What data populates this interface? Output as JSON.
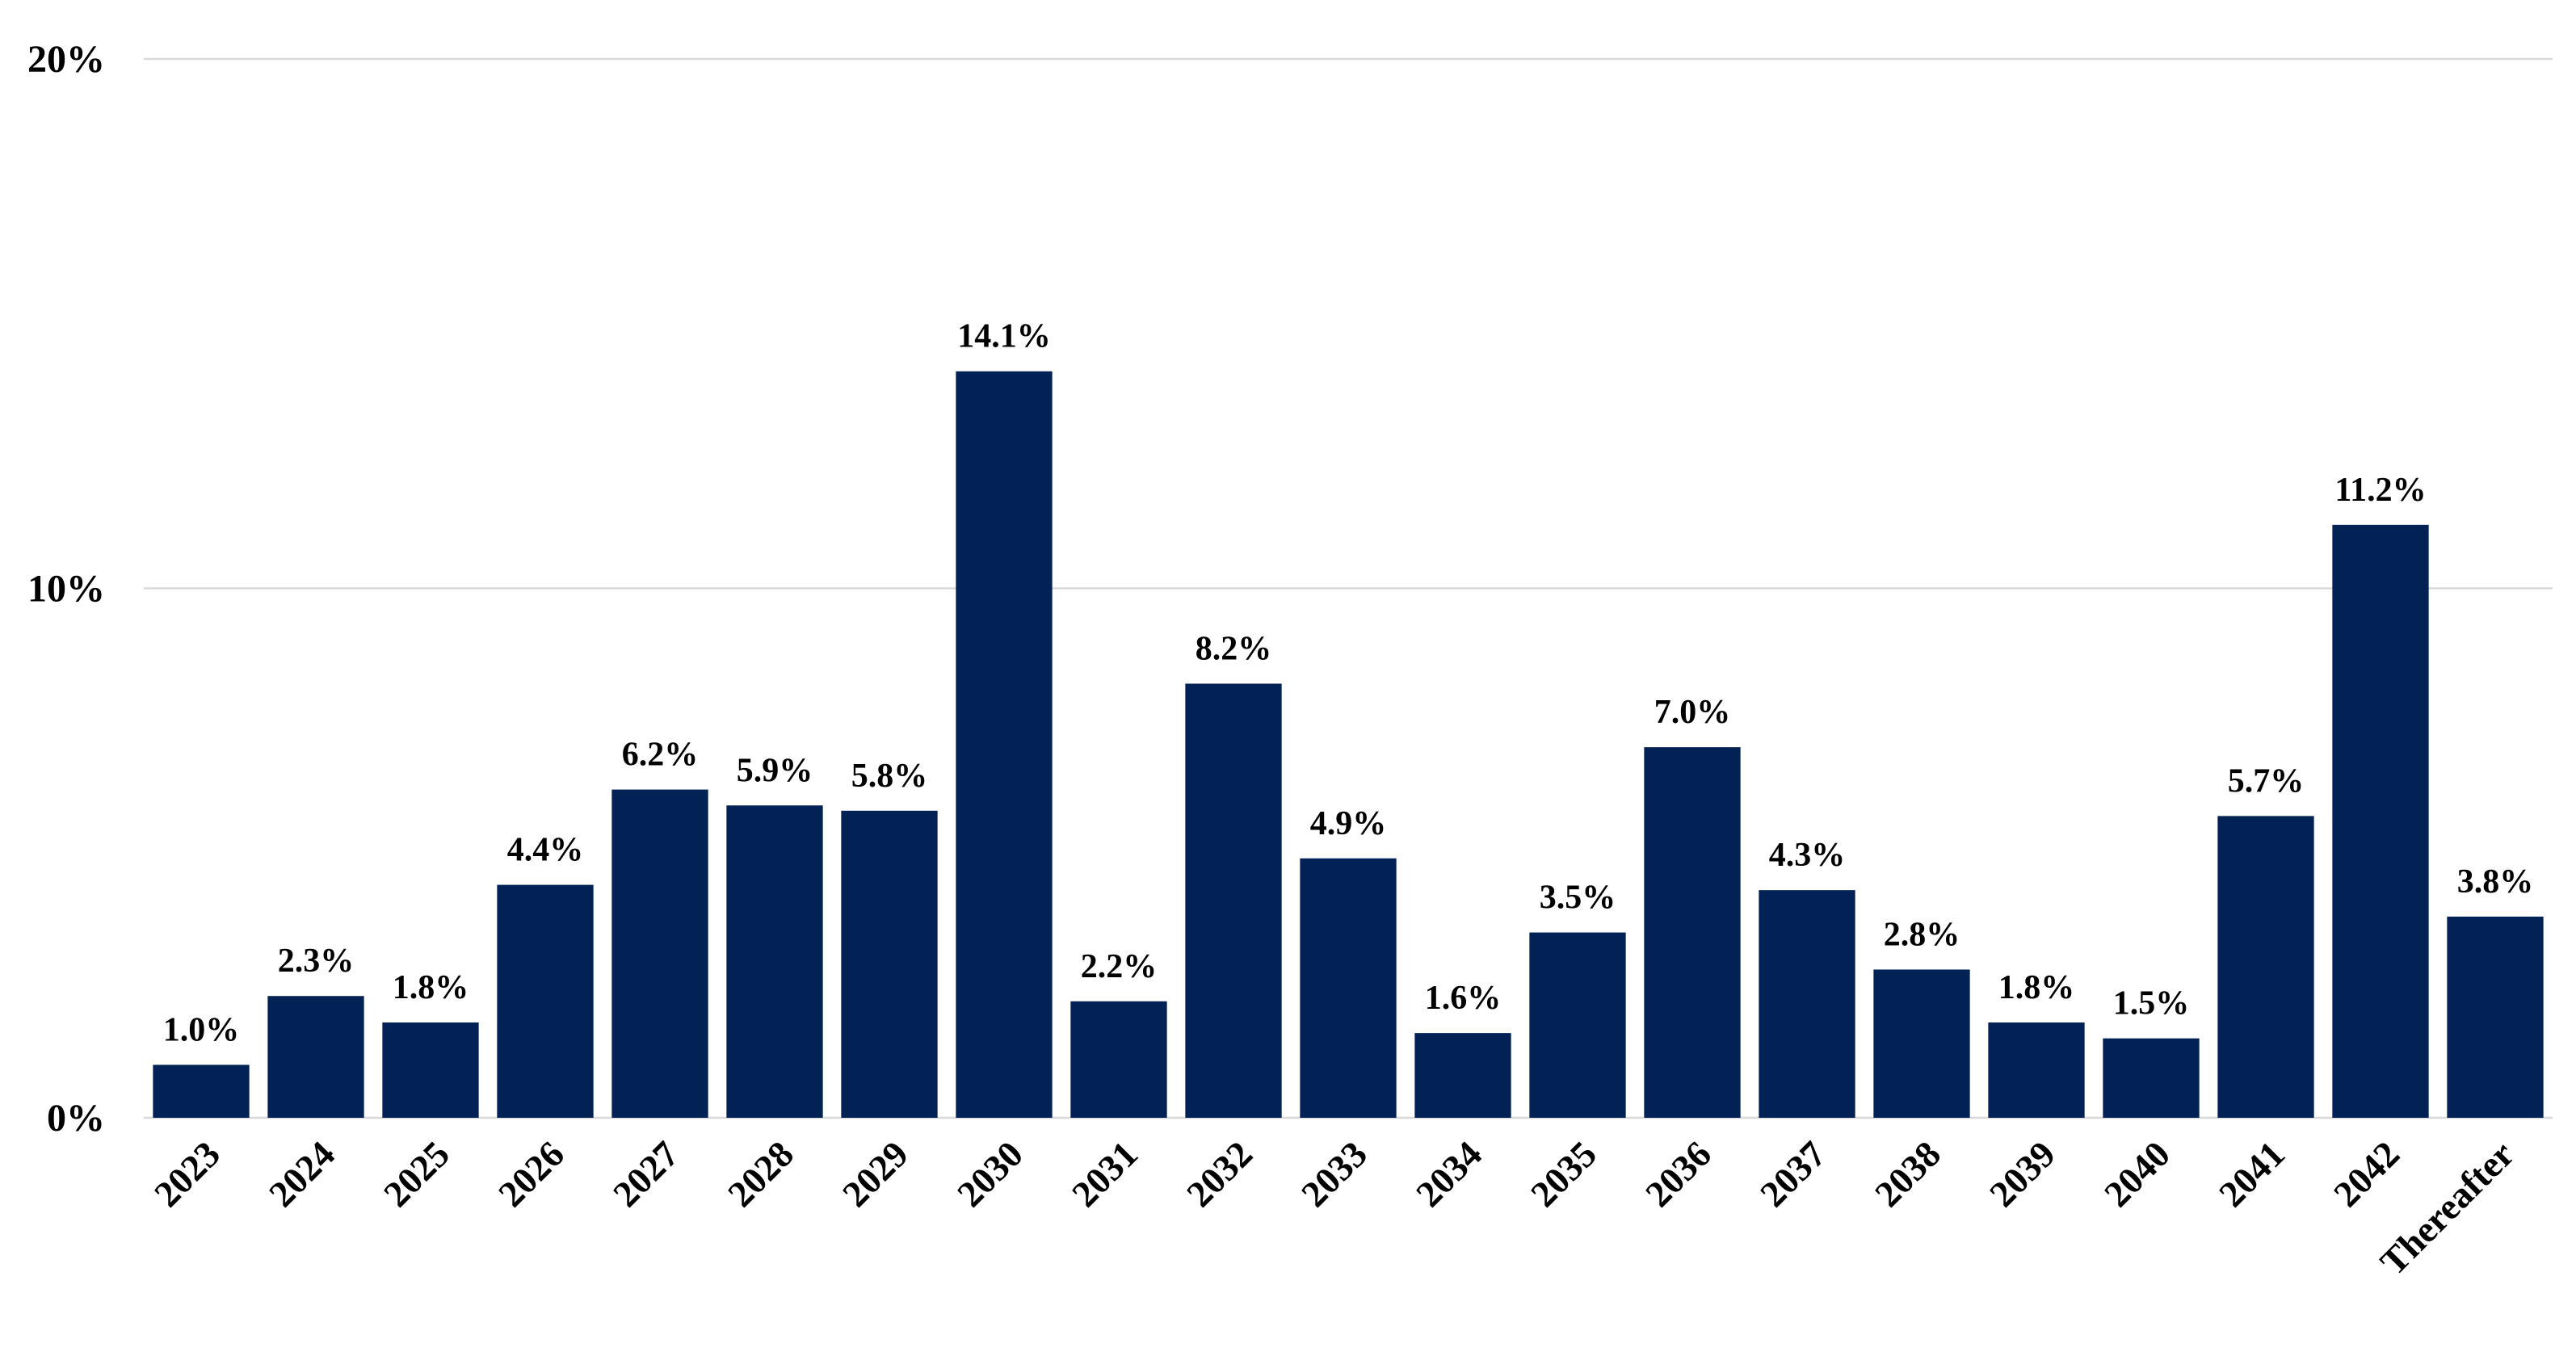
{
  "chart_data": {
    "type": "bar",
    "categories": [
      "2023",
      "2024",
      "2025",
      "2026",
      "2027",
      "2028",
      "2029",
      "2030",
      "2031",
      "2032",
      "2033",
      "2034",
      "2035",
      "2036",
      "2037",
      "2038",
      "2039",
      "2040",
      "2041",
      "2042",
      "Thereafter"
    ],
    "values": [
      1.0,
      2.3,
      1.8,
      4.4,
      6.2,
      5.9,
      5.8,
      14.1,
      2.2,
      8.2,
      4.9,
      1.6,
      3.5,
      7.0,
      4.3,
      2.8,
      1.8,
      1.5,
      5.7,
      11.2,
      3.8
    ],
    "data_labels": [
      "1.0%",
      "2.3%",
      "1.8%",
      "4.4%",
      "6.2%",
      "5.9%",
      "5.8%",
      "14.1%",
      "2.2%",
      "8.2%",
      "4.9%",
      "1.6%",
      "3.5%",
      "7.0%",
      "4.3%",
      "2.8%",
      "1.8%",
      "1.5%",
      "5.7%",
      "11.2%",
      "3.8%"
    ],
    "title": "",
    "xlabel": "",
    "ylabel": "",
    "ylim": [
      0,
      20
    ],
    "yticks": [
      0,
      10,
      20
    ],
    "ytick_labels": [
      "0%",
      "10%",
      "20%"
    ],
    "grid": true,
    "legend": "none",
    "bar_color": "#022255",
    "grid_color": "#d9d9d9"
  }
}
